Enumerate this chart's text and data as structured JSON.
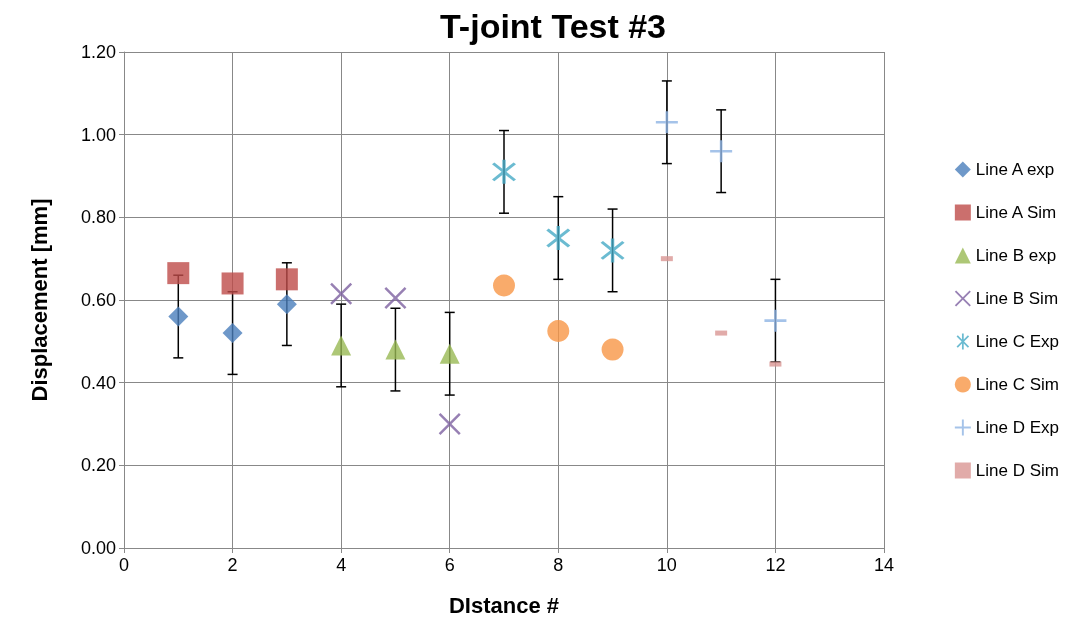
{
  "chart_data": {
    "type": "scatter",
    "title": "T-joint Test #3",
    "xlabel": "DIstance #",
    "ylabel": "Displacement [mm]",
    "xlim": [
      0,
      14
    ],
    "xticks": [
      0,
      2,
      4,
      6,
      8,
      10,
      12,
      14
    ],
    "ylim": [
      0,
      1.2
    ],
    "yticks": [
      {
        "value": 0,
        "label": "0.00"
      },
      {
        "value": 0.2,
        "label": "0.20"
      },
      {
        "value": 0.4,
        "label": "0.40"
      },
      {
        "value": 0.6,
        "label": "0.60"
      },
      {
        "value": 0.8,
        "label": "0.80"
      },
      {
        "value": 1.0,
        "label": "1.00"
      },
      {
        "value": 1.2,
        "label": "1.20"
      }
    ],
    "grid": true,
    "legend": "right",
    "series": [
      {
        "name": "Line A exp",
        "color": "#4a7ebb",
        "marker": "diamond",
        "x": [
          1,
          2,
          3
        ],
        "values": [
          0.56,
          0.52,
          0.59
        ],
        "errors": [
          0.1,
          0.1,
          0.1
        ]
      },
      {
        "name": "Line A Sim",
        "color": "#be4b48",
        "marker": "square",
        "x": [
          1,
          2,
          3
        ],
        "values": [
          0.665,
          0.64,
          0.65
        ]
      },
      {
        "name": "Line B exp",
        "color": "#98b954",
        "marker": "triangle",
        "x": [
          4,
          5,
          6
        ],
        "values": [
          0.49,
          0.48,
          0.47
        ],
        "errors": [
          0.1,
          0.1,
          0.1
        ]
      },
      {
        "name": "Line B Sim",
        "color": "#7d60a0",
        "marker": "x",
        "x": [
          4,
          5,
          6
        ],
        "values": [
          0.615,
          0.605,
          0.3
        ]
      },
      {
        "name": "Line C Exp",
        "color": "#46aac5",
        "marker": "star",
        "x": [
          7,
          8,
          9
        ],
        "values": [
          0.91,
          0.75,
          0.72
        ],
        "errors": [
          0.1,
          0.1,
          0.1
        ]
      },
      {
        "name": "Line C Sim",
        "color": "#f79646",
        "marker": "circle",
        "x": [
          7,
          8,
          9
        ],
        "values": [
          0.635,
          0.525,
          0.48
        ]
      },
      {
        "name": "Line D Exp",
        "color": "#8eb4e3",
        "marker": "cross",
        "x": [
          10,
          11,
          12
        ],
        "values": [
          1.03,
          0.96,
          0.55
        ],
        "errors": [
          0.1,
          0.1,
          0.1
        ]
      },
      {
        "name": "Line D Sim",
        "color": "#d99694",
        "x": [
          10,
          11,
          12
        ],
        "values": [
          0.7,
          0.52,
          0.445
        ]
      }
    ]
  }
}
